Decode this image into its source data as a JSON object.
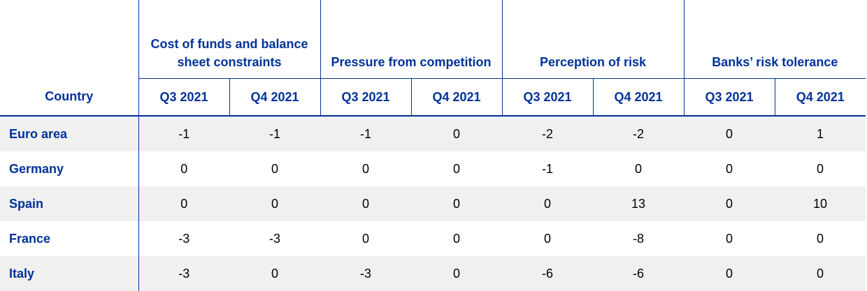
{
  "table": {
    "group_headers": [
      "Cost of funds and balance sheet constraints",
      "Pressure from competition",
      "Perception of risk",
      "Banks’ risk tolerance"
    ],
    "country_header": "Country",
    "subheaders": [
      "Q3 2021",
      "Q4 2021",
      "Q3 2021",
      "Q4 2021",
      "Q3 2021",
      "Q4 2021",
      "Q3 2021",
      "Q4 2021"
    ],
    "rows": [
      {
        "country": "Euro area",
        "values": [
          -1,
          -1,
          -1,
          0,
          -2,
          -2,
          0,
          1
        ]
      },
      {
        "country": "Germany",
        "values": [
          0,
          0,
          0,
          0,
          -1,
          0,
          0,
          0
        ]
      },
      {
        "country": "Spain",
        "values": [
          0,
          0,
          0,
          0,
          0,
          13,
          0,
          10
        ]
      },
      {
        "country": "France",
        "values": [
          -3,
          -3,
          0,
          0,
          0,
          -8,
          0,
          0
        ]
      },
      {
        "country": "Italy",
        "values": [
          -3,
          0,
          -3,
          0,
          -6,
          -6,
          0,
          0
        ]
      }
    ]
  }
}
